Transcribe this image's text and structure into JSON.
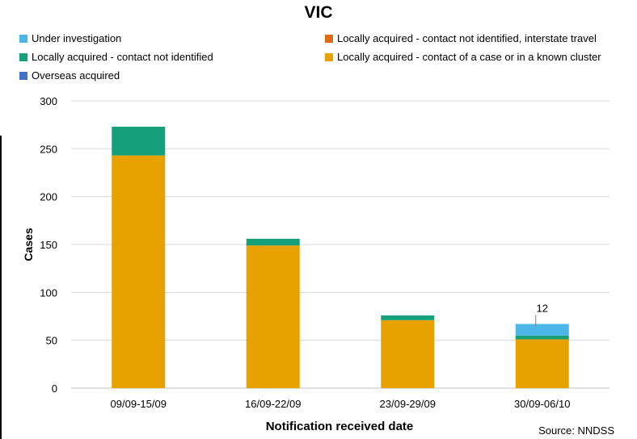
{
  "chart_data": {
    "type": "bar",
    "stacked": true,
    "title": "VIC",
    "xlabel": "Notification received date",
    "ylabel": "Cases",
    "ylim": [
      0,
      300
    ],
    "yticks": [
      0,
      50,
      100,
      150,
      200,
      250,
      300
    ],
    "grid": true,
    "legend_position": "top",
    "categories": [
      "09/09-15/09",
      "16/09-22/09",
      "23/09-29/09",
      "30/09-06/10"
    ],
    "series": [
      {
        "name": "Locally acquired - contact of a case or in a known cluster",
        "color": "#E8A200",
        "values": [
          243,
          149,
          71,
          51
        ]
      },
      {
        "name": "Locally acquired - contact not identified",
        "color": "#16A07A",
        "values": [
          30,
          7,
          5,
          4
        ]
      },
      {
        "name": "Under investigation",
        "color": "#4CB6E8",
        "values": [
          0,
          0,
          0,
          12
        ]
      },
      {
        "name": "Locally acquired - contact not identified, interstate travel",
        "color": "#E06A10",
        "values": [
          0,
          0,
          0,
          0
        ]
      },
      {
        "name": "Overseas acquired",
        "color": "#4472C4",
        "values": [
          0,
          0,
          0,
          0
        ]
      }
    ],
    "annotations": [
      {
        "category_index": 3,
        "series": "Under investigation",
        "text": "12"
      }
    ],
    "source": "Source: NNDSS"
  },
  "legend": [
    {
      "label": "Under investigation",
      "color": "#4CB6E8"
    },
    {
      "label": "Locally acquired - contact not identified, interstate travel",
      "color": "#E06A10"
    },
    {
      "label": "Locally acquired - contact not identified",
      "color": "#16A07A"
    },
    {
      "label": "Locally acquired - contact of a case or in a known cluster",
      "color": "#E8A200"
    },
    {
      "label": "Overseas acquired",
      "color": "#4472C4"
    }
  ]
}
